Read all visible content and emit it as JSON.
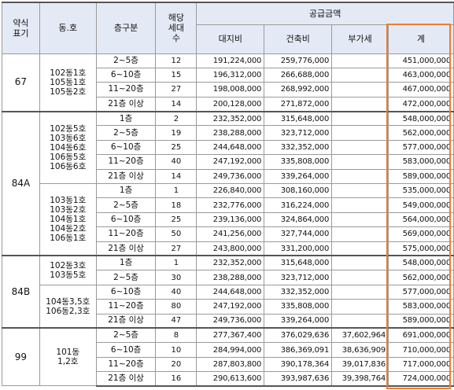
{
  "headers": {
    "type": [
      "약식",
      "표기"
    ],
    "building": "동.호",
    "floor": "층구분",
    "units": [
      "해당",
      "세대",
      "수"
    ],
    "supply": "공급금액",
    "land": "대지비",
    "construction": "건축비",
    "vat": "부가세",
    "total": "계"
  },
  "groups": [
    {
      "type": "67",
      "subgroups": [
        {
          "buildings": [
            "102동1호",
            "105동1호",
            "105동2호"
          ],
          "rows": [
            {
              "floor": "2~5층",
              "units": "12",
              "land": "191,224,000",
              "construction": "259,776,000",
              "vat": "",
              "total": "451,000,000"
            },
            {
              "floor": "6~10층",
              "units": "15",
              "land": "196,312,000",
              "construction": "266,688,000",
              "vat": "",
              "total": "463,000,000"
            },
            {
              "floor": "11~20층",
              "units": "27",
              "land": "198,008,000",
              "construction": "268,992,000",
              "vat": "",
              "total": "467,000,000"
            },
            {
              "floor": "21층 이상",
              "units": "14",
              "land": "200,128,000",
              "construction": "271,872,000",
              "vat": "",
              "total": "472,000,000"
            }
          ]
        }
      ]
    },
    {
      "type": "84A",
      "subgroups": [
        {
          "buildings": [
            "102동5호",
            "103동6호",
            "104동6호",
            "106동5호",
            "106동6호"
          ],
          "rows": [
            {
              "floor": "1층",
              "units": "2",
              "land": "232,352,000",
              "construction": "315,648,000",
              "vat": "",
              "total": "548,000,000"
            },
            {
              "floor": "2~5층",
              "units": "19",
              "land": "238,288,000",
              "construction": "323,712,000",
              "vat": "",
              "total": "562,000,000"
            },
            {
              "floor": "6~10층",
              "units": "25",
              "land": "244,648,000",
              "construction": "332,352,000",
              "vat": "",
              "total": "577,000,000"
            },
            {
              "floor": "11~20층",
              "units": "40",
              "land": "247,192,000",
              "construction": "335,808,000",
              "vat": "",
              "total": "583,000,000"
            },
            {
              "floor": "21층 이상",
              "units": "14",
              "land": "249,736,000",
              "construction": "339,264,000",
              "vat": "",
              "total": "589,000,000"
            }
          ]
        },
        {
          "buildings": [
            "103동1호",
            "103동2호",
            "104동1호",
            "104동2호",
            "106동1호"
          ],
          "rows": [
            {
              "floor": "1층",
              "units": "1",
              "land": "226,840,000",
              "construction": "308,160,000",
              "vat": "",
              "total": "535,000,000"
            },
            {
              "floor": "2~5층",
              "units": "18",
              "land": "232,776,000",
              "construction": "316,224,000",
              "vat": "",
              "total": "549,000,000"
            },
            {
              "floor": "6~10층",
              "units": "25",
              "land": "239,136,000",
              "construction": "324,864,000",
              "vat": "",
              "total": "564,000,000"
            },
            {
              "floor": "11~20층",
              "units": "50",
              "land": "241,256,000",
              "construction": "327,744,000",
              "vat": "",
              "total": "569,000,000"
            },
            {
              "floor": "21층 이상",
              "units": "27",
              "land": "243,800,000",
              "construction": "331,200,000",
              "vat": "",
              "total": "575,000,000"
            }
          ]
        }
      ]
    },
    {
      "type": "84B",
      "subgroups": [
        {
          "buildings": [
            "102동3호",
            "103동5호"
          ],
          "rows": [
            {
              "floor": "1층",
              "units": "1",
              "land": "232,352,000",
              "construction": "315,648,000",
              "vat": "",
              "total": "548,000,000"
            },
            {
              "floor": "2~5층",
              "units": "30",
              "land": "238,288,000",
              "construction": "323,712,000",
              "vat": "",
              "total": "562,000,000"
            }
          ]
        },
        {
          "buildings": [
            "104동3,5호",
            "106동2,3호"
          ],
          "rows": [
            {
              "floor": "6~10층",
              "units": "40",
              "land": "244,648,000",
              "construction": "332,352,000",
              "vat": "",
              "total": "577,000,000"
            },
            {
              "floor": "11~20층",
              "units": "80",
              "land": "247,192,000",
              "construction": "335,808,000",
              "vat": "",
              "total": "583,000,000"
            },
            {
              "floor": "21층 이상",
              "units": "47",
              "land": "249,736,000",
              "construction": "339,264,000",
              "vat": "",
              "total": "589,000,000"
            }
          ]
        }
      ]
    },
    {
      "type": "99",
      "subgroups": [
        {
          "buildings": [
            "101동",
            "1,2호"
          ],
          "rows": [
            {
              "floor": "2~5층",
              "units": "8",
              "land": "277,367,400",
              "construction": "376,029,636",
              "vat": "37,602,964",
              "total": "691,000,000"
            },
            {
              "floor": "6~10층",
              "units": "10",
              "land": "284,994,000",
              "construction": "386,369,091",
              "vat": "38,636,909",
              "total": "710,000,000"
            },
            {
              "floor": "11~20층",
              "units": "20",
              "land": "287,803,800",
              "construction": "390,178,364",
              "vat": "39,017,836",
              "total": "717,000,000"
            },
            {
              "floor": "21층 이상",
              "units": "16",
              "land": "290,613,600",
              "construction": "393,987,636",
              "vat": "39,398,764",
              "total": "724,000,000"
            }
          ]
        }
      ]
    }
  ],
  "highlight_color": "#ed7d31"
}
